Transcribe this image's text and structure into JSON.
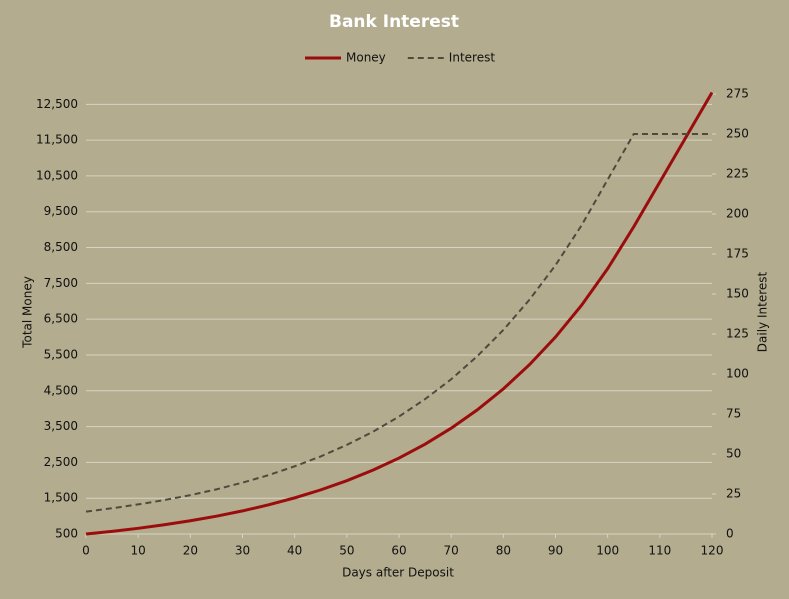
{
  "chart_data": {
    "type": "line",
    "title": "Bank Interest",
    "x_label": "Days after Deposit",
    "y_label": "Total Money",
    "y2_label": "Daily Interest",
    "x": [
      0,
      5,
      10,
      15,
      20,
      25,
      30,
      35,
      40,
      45,
      50,
      55,
      60,
      65,
      70,
      75,
      80,
      85,
      90,
      95,
      100,
      105,
      110,
      115,
      120
    ],
    "series": [
      {
        "name": "Money",
        "color": "#9b0d0d",
        "line_style": "solid",
        "values": [
          500,
          574,
          659,
          757,
          869,
          997,
          1145,
          1314,
          1509,
          1732,
          1989,
          2283,
          2621,
          3009,
          3455,
          3966,
          4553,
          5227,
          6001,
          6890,
          7910,
          9081,
          10331,
          11581,
          12831
        ]
      },
      {
        "name": "Interest",
        "color": "#4f4a3e",
        "line_style": "dashed",
        "axis": "y2",
        "values": [
          14,
          16.1,
          18.5,
          21.2,
          24.3,
          27.9,
          32.1,
          36.8,
          42.3,
          48.5,
          55.7,
          63.9,
          73.4,
          84.3,
          96.7,
          111.1,
          127.5,
          146.4,
          168,
          192.9,
          221.5,
          250,
          250,
          250,
          250
        ]
      }
    ],
    "xlim": [
      0,
      120
    ],
    "xticks": [
      0,
      10,
      20,
      30,
      40,
      50,
      60,
      70,
      80,
      90,
      100,
      110,
      120
    ],
    "ylim": [
      500,
      12900
    ],
    "yticks": [
      500,
      {
        "value": 1500,
        "label": "1,500"
      },
      {
        "value": 2500,
        "label": "2,500"
      },
      {
        "value": 3500,
        "label": "3,500"
      },
      {
        "value": 4500,
        "label": "4,500"
      },
      {
        "value": 5500,
        "label": "5,500"
      },
      {
        "value": 6500,
        "label": "6,500"
      },
      {
        "value": 7500,
        "label": "7,500"
      },
      {
        "value": 8500,
        "label": "8,500"
      },
      {
        "value": 9500,
        "label": "9,500"
      },
      {
        "value": 10500,
        "label": "10,500"
      },
      {
        "value": 11500,
        "label": "11,500"
      },
      {
        "value": 12500,
        "label": "12,500"
      }
    ],
    "y2lim": [
      0,
      277.5
    ],
    "y2ticks": [
      0,
      25,
      50,
      75,
      100,
      125,
      150,
      175,
      200,
      225,
      250,
      275
    ],
    "grid": true,
    "legend": "top"
  }
}
